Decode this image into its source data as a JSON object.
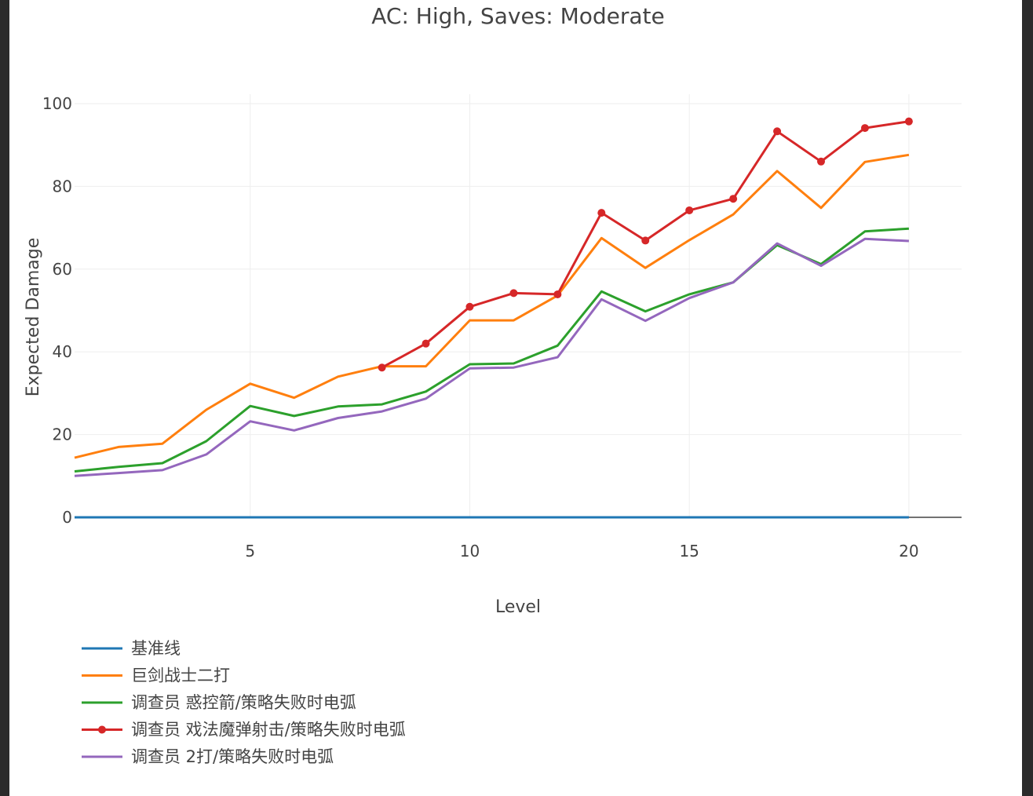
{
  "chart_data": {
    "type": "line",
    "title": "AC: High, Saves: Moderate",
    "xlabel": "Level",
    "ylabel": "Expected Damage",
    "xlim": [
      1,
      21.2
    ],
    "ylim": [
      0,
      100
    ],
    "xticks": [
      5,
      10,
      15,
      20
    ],
    "yticks": [
      0,
      20,
      40,
      60,
      80,
      100
    ],
    "grid": true,
    "legend_position": "bottom-left",
    "series": [
      {
        "name": "基准线",
        "color": "#1f77b4",
        "markers": false,
        "x": [
          1,
          2,
          3,
          4,
          5,
          6,
          7,
          8,
          9,
          10,
          11,
          12,
          13,
          14,
          15,
          16,
          17,
          18,
          19,
          20
        ],
        "y": [
          0,
          0,
          0,
          0,
          0,
          0,
          0,
          0,
          0,
          0,
          0,
          0,
          0,
          0,
          0,
          0,
          0,
          0,
          0,
          0
        ]
      },
      {
        "name": "巨剑战士二打",
        "color": "#ff7f0e",
        "markers": false,
        "x": [
          1,
          2,
          3,
          4,
          5,
          6,
          7,
          8,
          9,
          10,
          11,
          12,
          13,
          14,
          15,
          16,
          17,
          18,
          19,
          20
        ],
        "y": [
          14.4,
          17,
          17.8,
          26,
          32.3,
          28.9,
          34,
          36.5,
          36.5,
          47.6,
          47.6,
          53.6,
          67.5,
          60.3,
          67,
          73.2,
          83.7,
          74.8,
          85.9,
          87.6
        ]
      },
      {
        "name": "调查员 惑控箭/策略失败时电弧",
        "color": "#2ca02c",
        "markers": false,
        "x": [
          1,
          2,
          3,
          4,
          5,
          6,
          7,
          8,
          9,
          10,
          11,
          12,
          13,
          14,
          15,
          16,
          17,
          18,
          19,
          20
        ],
        "y": [
          11.1,
          12.2,
          13.1,
          18.4,
          26.9,
          24.5,
          26.8,
          27.3,
          30.4,
          37,
          37.2,
          41.5,
          54.6,
          49.8,
          53.9,
          56.8,
          65.8,
          61.2,
          69.1,
          69.8
        ]
      },
      {
        "name": "调查员 戏法魔弹射击/策略失败时电弧",
        "color": "#d62728",
        "markers": true,
        "x": [
          8,
          9,
          10,
          11,
          12,
          13,
          14,
          15,
          16,
          17,
          18,
          19,
          20
        ],
        "y": [
          36.2,
          42,
          50.9,
          54.2,
          53.9,
          73.6,
          66.9,
          74.2,
          77,
          93.3,
          86,
          94.1,
          95.7
        ]
      },
      {
        "name": "调查员 2打/策略失败时电弧",
        "color": "#9467bd",
        "markers": false,
        "x": [
          1,
          2,
          3,
          4,
          5,
          6,
          7,
          8,
          9,
          10,
          11,
          12,
          13,
          14,
          15,
          16,
          17,
          18,
          19,
          20
        ],
        "y": [
          10,
          10.7,
          11.4,
          15.2,
          23.2,
          21,
          24,
          25.6,
          28.7,
          36,
          36.2,
          38.7,
          52.7,
          47.5,
          53,
          56.8,
          66.2,
          60.8,
          67.3,
          66.8
        ]
      }
    ]
  }
}
